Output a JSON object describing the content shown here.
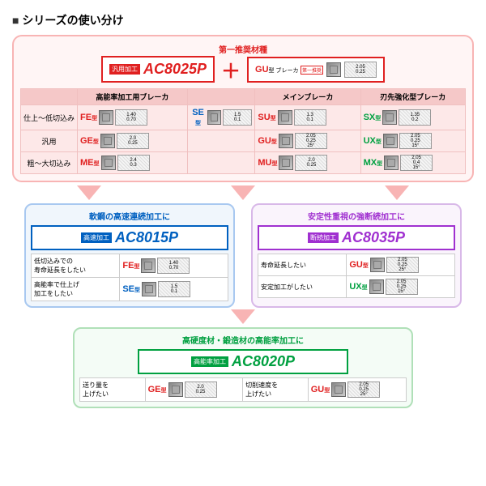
{
  "title": "シリーズの使い分け",
  "header": {
    "rec_label": "第一推奨材種",
    "main_grade_tag": "汎用加工",
    "main_grade": "AC8025P",
    "main_grade_color": "#e02020",
    "plus": "＋",
    "breaker_tag": "GU",
    "breaker_sub": "型 ブレーカ",
    "breaker_note": "第一推奨",
    "breaker_dim": {
      "a": "0.25",
      "b": "2.05",
      "c": "25°"
    }
  },
  "table": {
    "cols": [
      "",
      "高能率加工用ブレーカ",
      "",
      "メインブレーカ",
      "刃先強化型ブレーカ"
    ],
    "rows": [
      {
        "label": "仕上～低切込み",
        "cells": [
          {
            "type": "FE",
            "color": "r",
            "dim": {
              "a": "0.70",
              "b": "1.40"
            }
          },
          {
            "type": "SE",
            "color": "b",
            "dim": {
              "a": "0.1",
              "b": "1.5"
            }
          },
          {
            "type": "SU",
            "color": "r",
            "dim": {
              "a": "0.1",
              "b": "1.3"
            }
          },
          {
            "type": "SX",
            "color": "g",
            "dim": {
              "a": "0.2",
              "b": "1.35"
            }
          }
        ]
      },
      {
        "label": "汎用",
        "cells": [
          {
            "type": "GE",
            "color": "r",
            "dim": {
              "a": "0.25",
              "b": "2.0"
            }
          },
          {
            "type": "",
            "color": "",
            "dim": null
          },
          {
            "type": "GU",
            "color": "r",
            "dim": {
              "a": "0.25",
              "b": "2.05",
              "c": "25°"
            }
          },
          {
            "type": "UX",
            "color": "g",
            "dim": {
              "a": "0.25",
              "b": "2.05",
              "c": "15°"
            }
          }
        ]
      },
      {
        "label": "粗～大切込み",
        "cells": [
          {
            "type": "ME",
            "color": "r",
            "dim": {
              "a": "0.3",
              "b": "2.4"
            }
          },
          {
            "type": "",
            "color": "",
            "dim": null
          },
          {
            "type": "MU",
            "color": "r",
            "dim": {
              "a": "0.25",
              "b": "2.0"
            }
          },
          {
            "type": "MX",
            "color": "g",
            "dim": {
              "a": "0.4",
              "b": "2.05",
              "c": "15°"
            }
          }
        ]
      }
    ]
  },
  "sub_blue": {
    "title": "軟鋼の高速連続加工に",
    "tag": "高速加工",
    "grade": "AC8015P",
    "grade_color": "#0060c0",
    "rows": [
      {
        "label": "低切込みでの\n寿命延長をしたい",
        "type": "FE",
        "color": "r",
        "dim": {
          "a": "0.70",
          "b": "1.40"
        }
      },
      {
        "label": "高能率で仕上げ\n加工をしたい",
        "type": "SE",
        "color": "b",
        "dim": {
          "a": "0.1",
          "b": "1.5"
        }
      }
    ]
  },
  "sub_purple": {
    "title": "安定性重視の強断続加工に",
    "tag": "断続加工",
    "grade": "AC8035P",
    "grade_color": "#a030d0",
    "rows": [
      {
        "label": "寿命延長したい",
        "type": "GU",
        "color": "r",
        "dim": {
          "a": "0.25",
          "b": "2.05",
          "c": "25°"
        }
      },
      {
        "label": "安定加工がしたい",
        "type": "UX",
        "color": "g",
        "dim": {
          "a": "0.25",
          "b": "2.05",
          "c": "15°"
        }
      }
    ]
  },
  "sub_green": {
    "title": "高硬度材・鍛造材の高能率加工に",
    "tag": "高能率加工",
    "grade": "AC8020P",
    "grade_color": "#00a040",
    "rows": [
      {
        "label": "送り量を\n上げたい",
        "type": "GE",
        "color": "r",
        "dim": {
          "a": "0.25",
          "b": "2.0"
        }
      },
      {
        "label": "切削速度を\n上げたい",
        "type": "GU",
        "color": "r",
        "dim": {
          "a": "0.25",
          "b": "2.05",
          "c": "25°"
        }
      }
    ]
  }
}
